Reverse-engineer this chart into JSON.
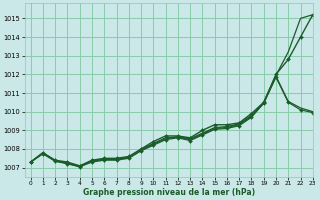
{
  "background_color": "#cbe8e8",
  "grid_color": "#88ccaa",
  "line_color": "#1a5c2a",
  "xlabel": "Graphe pression niveau de la mer (hPa)",
  "xlim": [
    -0.5,
    23
  ],
  "ylim": [
    1006.5,
    1015.8
  ],
  "yticks": [
    1007,
    1008,
    1009,
    1010,
    1011,
    1012,
    1013,
    1014,
    1015
  ],
  "xticks": [
    0,
    1,
    2,
    3,
    4,
    5,
    6,
    7,
    8,
    9,
    10,
    11,
    12,
    13,
    14,
    15,
    16,
    17,
    18,
    19,
    20,
    21,
    22,
    23
  ],
  "series": [
    {
      "x": [
        0,
        1,
        2,
        3,
        4,
        5,
        6,
        7,
        8,
        9,
        10,
        11,
        12,
        13,
        14,
        15,
        16,
        17,
        18,
        19,
        20,
        21,
        22,
        23
      ],
      "y": [
        1007.3,
        1007.8,
        1007.4,
        1007.3,
        1007.1,
        1007.4,
        1007.5,
        1007.5,
        1007.6,
        1008.0,
        1008.4,
        1008.7,
        1008.7,
        1008.6,
        1009.0,
        1009.3,
        1009.3,
        1009.4,
        1009.9,
        1010.5,
        1012.0,
        1012.8,
        1014.0,
        1015.2
      ],
      "marker": true,
      "linewidth": 1.0
    },
    {
      "x": [
        0,
        1,
        2,
        3,
        4,
        5,
        6,
        7,
        8,
        9,
        10,
        11,
        12,
        13,
        14,
        15,
        16,
        17,
        18,
        19,
        20,
        21,
        22,
        23
      ],
      "y": [
        1007.3,
        1007.8,
        1007.35,
        1007.25,
        1007.05,
        1007.35,
        1007.45,
        1007.45,
        1007.55,
        1007.95,
        1008.3,
        1008.6,
        1008.65,
        1008.55,
        1008.85,
        1009.15,
        1009.2,
        1009.35,
        1009.8,
        1010.45,
        1011.95,
        1013.2,
        1015.0,
        1015.2
      ],
      "marker": false,
      "linewidth": 0.9
    },
    {
      "x": [
        0,
        1,
        2,
        3,
        4,
        5,
        6,
        7,
        8,
        9,
        10,
        11,
        12,
        13,
        14,
        15,
        16,
        17,
        18,
        19,
        20,
        21,
        22,
        23
      ],
      "y": [
        1007.3,
        1007.75,
        1007.35,
        1007.25,
        1007.05,
        1007.35,
        1007.45,
        1007.45,
        1007.55,
        1007.95,
        1008.25,
        1008.55,
        1008.65,
        1008.5,
        1008.8,
        1009.1,
        1009.15,
        1009.3,
        1009.75,
        1010.5,
        1011.9,
        1010.55,
        1010.2,
        1010.0
      ],
      "marker": false,
      "linewidth": 0.9
    },
    {
      "x": [
        0,
        1,
        2,
        3,
        4,
        5,
        6,
        7,
        8,
        9,
        10,
        11,
        12,
        13,
        14,
        15,
        16,
        17,
        18,
        19,
        20,
        21,
        22,
        23
      ],
      "y": [
        1007.3,
        1007.75,
        1007.35,
        1007.2,
        1007.05,
        1007.3,
        1007.4,
        1007.4,
        1007.5,
        1007.9,
        1008.2,
        1008.5,
        1008.6,
        1008.45,
        1008.75,
        1009.05,
        1009.1,
        1009.25,
        1009.7,
        1010.45,
        1011.85,
        1010.5,
        1010.1,
        1009.95
      ],
      "marker": true,
      "linewidth": 0.9
    }
  ]
}
